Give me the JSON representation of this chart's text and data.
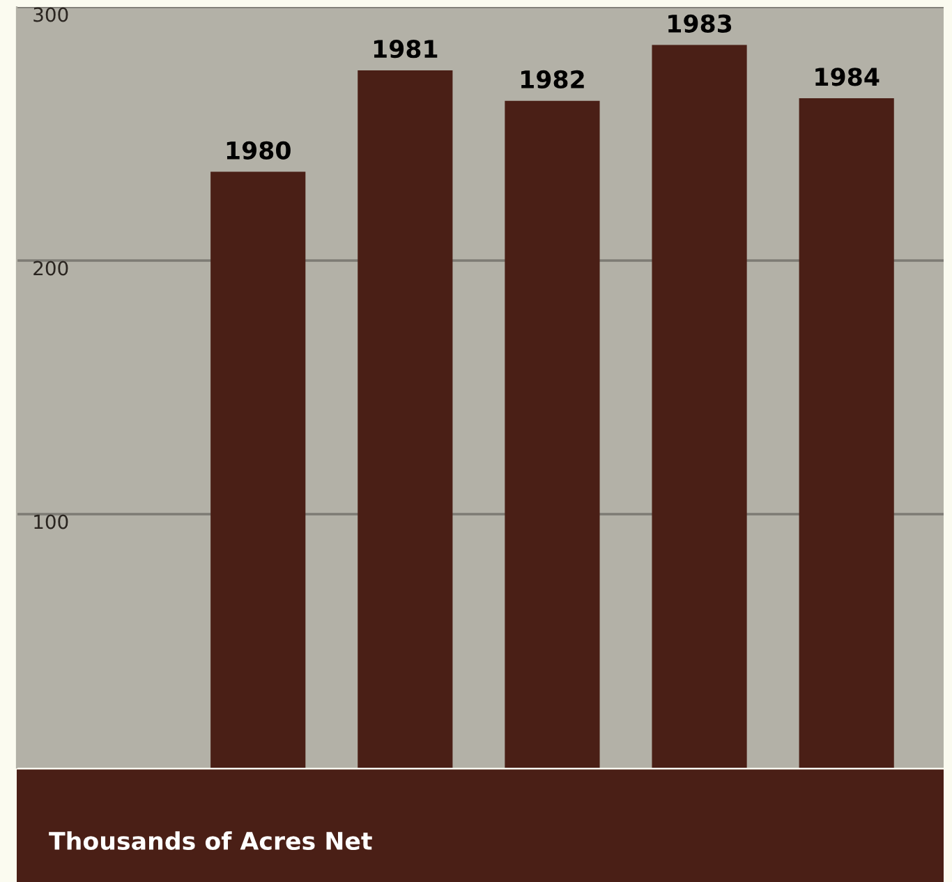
{
  "chart_data": {
    "type": "bar",
    "ylabel": "Thousands of Acres Net",
    "categories": [
      "1980",
      "1981",
      "1982",
      "1983",
      "1984"
    ],
    "values": [
      235,
      275,
      263,
      285,
      264
    ],
    "color": "#4a1f16",
    "ylim": [
      0,
      300
    ],
    "yticks": [
      100,
      200,
      300
    ],
    "grid": "y"
  }
}
